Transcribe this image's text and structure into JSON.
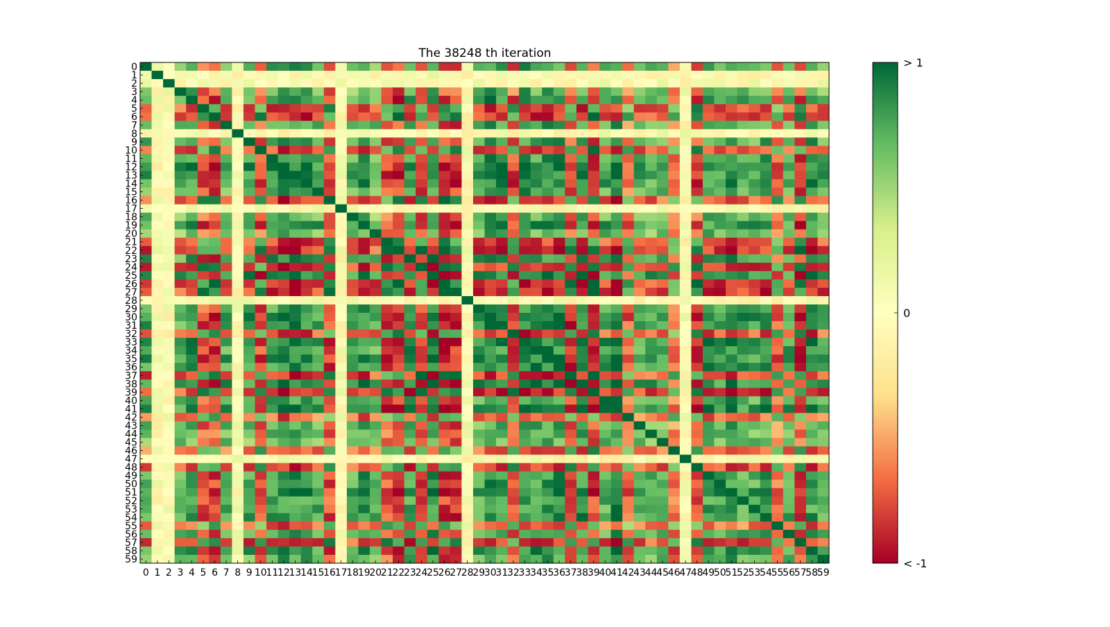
{
  "chart_data": {
    "type": "heatmap",
    "title": "The 38248  th iteration",
    "xlabel": "",
    "ylabel": "",
    "size": 60,
    "x_tick_labels": [
      "0",
      "1",
      "2",
      "3",
      "4",
      "5",
      "6",
      "7",
      "8",
      "9",
      "10",
      "11",
      "12",
      "13",
      "14",
      "15",
      "16",
      "17",
      "18",
      "19",
      "20",
      "21",
      "22",
      "23",
      "24",
      "25",
      "26",
      "27",
      "28",
      "29",
      "30",
      "31",
      "32",
      "33",
      "34",
      "35",
      "36",
      "37",
      "38",
      "39",
      "40",
      "41",
      "42",
      "43",
      "44",
      "45",
      "46",
      "47",
      "48",
      "49",
      "50",
      "51",
      "52",
      "53",
      "54",
      "55",
      "56",
      "57",
      "58",
      "59"
    ],
    "y_tick_labels": [
      "0",
      "1",
      "2",
      "3",
      "4",
      "5",
      "6",
      "7",
      "8",
      "9",
      "10",
      "11",
      "12",
      "13",
      "14",
      "15",
      "16",
      "17",
      "18",
      "19",
      "20",
      "21",
      "22",
      "23",
      "24",
      "25",
      "26",
      "27",
      "28",
      "29",
      "30",
      "31",
      "32",
      "33",
      "34",
      "35",
      "36",
      "37",
      "38",
      "39",
      "40",
      "41",
      "42",
      "43",
      "44",
      "45",
      "46",
      "47",
      "48",
      "49",
      "50",
      "51",
      "52",
      "53",
      "54",
      "55",
      "56",
      "57",
      "58",
      "59"
    ],
    "value_range": [
      -1,
      1
    ],
    "colormap": "RdYlGn",
    "colormap_stops": [
      "#a50026",
      "#f46d43",
      "#fee08b",
      "#ffffbf",
      "#d9ef8b",
      "#66bd63",
      "#006837"
    ],
    "colorbar": {
      "ticks": [
        {
          "value": 1,
          "label": "> 1"
        },
        {
          "value": 0,
          "label": "0"
        },
        {
          "value": -1,
          "label": "< -1"
        }
      ]
    },
    "sign_vector": [
      1,
      0,
      0,
      1,
      1,
      -1,
      -1,
      1,
      0,
      1,
      -1,
      1,
      1,
      1,
      1,
      1,
      -1,
      0,
      1,
      1,
      1,
      -1,
      -1,
      1,
      -1,
      1,
      -1,
      -1,
      0,
      1,
      1,
      1,
      -1,
      1,
      1,
      1,
      1,
      -1,
      1,
      -1,
      1,
      1,
      -1,
      1,
      1,
      1,
      -1,
      0,
      -1,
      1,
      1,
      1,
      1,
      1,
      1,
      -1,
      1,
      -1,
      1,
      1
    ],
    "values_note_source": "values rendered as matrix with diagonal = 1"
  }
}
